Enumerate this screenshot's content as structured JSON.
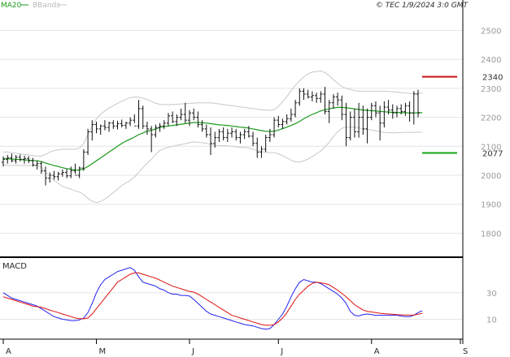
{
  "header": {
    "legend_ma": "MA20",
    "legend_bb": "BBands",
    "copyright": "© TEC 1/9/2024 3:0 GMT"
  },
  "colors": {
    "price": "#111111",
    "ma": "#1a9a1a",
    "bbands": "#c8c8c8",
    "macd": "#2222ee",
    "signal": "#dd1111",
    "resistance": "#cc1111",
    "support": "#11aa11",
    "grid": "#e4e4e4"
  },
  "chart_data": [
    {
      "type": "ohlc",
      "y_ticks": [
        1800,
        1900,
        2000,
        2100,
        2200,
        2300,
        2400,
        2500
      ],
      "ylim": [
        1720,
        2560
      ],
      "x_tick_labels": [
        "A",
        "M",
        "J",
        "J",
        "A",
        "S"
      ],
      "x_tick_index": [
        0,
        22,
        44,
        65,
        87,
        108
      ],
      "levels": [
        {
          "name": "resistance",
          "value": 2340,
          "label": "2340"
        },
        {
          "name": "support",
          "value": 2077,
          "label": "2077"
        }
      ],
      "series": [
        {
          "name": "MA20",
          "type": "line"
        },
        {
          "name": "BBands",
          "type": "band"
        }
      ],
      "bars": [
        [
          2045,
          2065,
          2030,
          2055
        ],
        [
          2055,
          2070,
          2040,
          2060
        ],
        [
          2060,
          2075,
          2045,
          2050
        ],
        [
          2050,
          2070,
          2040,
          2062
        ],
        [
          2062,
          2072,
          2048,
          2055
        ],
        [
          2055,
          2068,
          2040,
          2058
        ],
        [
          2058,
          2066,
          2042,
          2050
        ],
        [
          2050,
          2060,
          2030,
          2035
        ],
        [
          2035,
          2050,
          2020,
          2040
        ],
        [
          2040,
          2048,
          2005,
          2015
        ],
        [
          2015,
          2030,
          1965,
          1990
        ],
        [
          1990,
          2010,
          1975,
          2000
        ],
        [
          2000,
          2015,
          1985,
          1995
        ],
        [
          1995,
          2012,
          1982,
          2005
        ],
        [
          2005,
          2020,
          1995,
          2010
        ],
        [
          2010,
          2022,
          1990,
          1998
        ],
        [
          1998,
          2030,
          1990,
          2015
        ],
        [
          2015,
          2040,
          2005,
          2000
        ],
        [
          2000,
          2030,
          1990,
          2025
        ],
        [
          2025,
          2090,
          2015,
          2080
        ],
        [
          2080,
          2160,
          2070,
          2150
        ],
        [
          2150,
          2190,
          2120,
          2175
        ],
        [
          2175,
          2185,
          2145,
          2160
        ],
        [
          2160,
          2175,
          2140,
          2170
        ],
        [
          2170,
          2190,
          2155,
          2165
        ],
        [
          2165,
          2185,
          2150,
          2180
        ],
        [
          2180,
          2190,
          2160,
          2170
        ],
        [
          2170,
          2188,
          2158,
          2178
        ],
        [
          2178,
          2192,
          2165,
          2172
        ],
        [
          2172,
          2185,
          2160,
          2180
        ],
        [
          2180,
          2200,
          2170,
          2190
        ],
        [
          2190,
          2210,
          2180,
          2170
        ],
        [
          2170,
          2260,
          2160,
          2230
        ],
        [
          2230,
          2240,
          2160,
          2170
        ],
        [
          2170,
          2185,
          2140,
          2160
        ],
        [
          2160,
          2170,
          2080,
          2140
        ],
        [
          2140,
          2175,
          2130,
          2165
        ],
        [
          2165,
          2180,
          2150,
          2170
        ],
        [
          2170,
          2190,
          2160,
          2180
        ],
        [
          2180,
          2215,
          2170,
          2205
        ],
        [
          2205,
          2220,
          2180,
          2185
        ],
        [
          2185,
          2210,
          2170,
          2200
        ],
        [
          2200,
          2230,
          2190,
          2210
        ],
        [
          2210,
          2250,
          2180,
          2190
        ],
        [
          2190,
          2225,
          2170,
          2215
        ],
        [
          2215,
          2230,
          2190,
          2200
        ],
        [
          2200,
          2220,
          2165,
          2175
        ],
        [
          2175,
          2190,
          2150,
          2160
        ],
        [
          2160,
          2175,
          2130,
          2140
        ],
        [
          2140,
          2165,
          2070,
          2110
        ],
        [
          2110,
          2150,
          2095,
          2130
        ],
        [
          2130,
          2160,
          2115,
          2150
        ],
        [
          2150,
          2165,
          2120,
          2130
        ],
        [
          2130,
          2160,
          2115,
          2145
        ],
        [
          2145,
          2165,
          2130,
          2150
        ],
        [
          2150,
          2160,
          2120,
          2130
        ],
        [
          2130,
          2150,
          2110,
          2140
        ],
        [
          2140,
          2160,
          2125,
          2150
        ],
        [
          2150,
          2170,
          2130,
          2135
        ],
        [
          2135,
          2150,
          2100,
          2110
        ],
        [
          2110,
          2130,
          2060,
          2080
        ],
        [
          2080,
          2100,
          2060,
          2090
        ],
        [
          2090,
          2140,
          2080,
          2130
        ],
        [
          2130,
          2160,
          2115,
          2140
        ],
        [
          2140,
          2200,
          2130,
          2190
        ],
        [
          2190,
          2205,
          2165,
          2175
        ],
        [
          2175,
          2195,
          2160,
          2185
        ],
        [
          2185,
          2210,
          2175,
          2195
        ],
        [
          2195,
          2230,
          2185,
          2210
        ],
        [
          2210,
          2260,
          2200,
          2250
        ],
        [
          2250,
          2300,
          2240,
          2290
        ],
        [
          2290,
          2300,
          2260,
          2280
        ],
        [
          2280,
          2295,
          2265,
          2270
        ],
        [
          2270,
          2290,
          2255,
          2275
        ],
        [
          2275,
          2285,
          2250,
          2265
        ],
        [
          2265,
          2290,
          2250,
          2280
        ],
        [
          2280,
          2305,
          2210,
          2220
        ],
        [
          2220,
          2260,
          2180,
          2250
        ],
        [
          2250,
          2280,
          2230,
          2270
        ],
        [
          2270,
          2285,
          2240,
          2260
        ],
        [
          2260,
          2275,
          2190,
          2210
        ],
        [
          2210,
          2250,
          2100,
          2130
        ],
        [
          2130,
          2220,
          2120,
          2200
        ],
        [
          2200,
          2230,
          2130,
          2150
        ],
        [
          2150,
          2250,
          2130,
          2200
        ],
        [
          2200,
          2240,
          2140,
          2160
        ],
        [
          2160,
          2230,
          2110,
          2200
        ],
        [
          2200,
          2250,
          2190,
          2240
        ],
        [
          2240,
          2255,
          2200,
          2215
        ],
        [
          2215,
          2240,
          2120,
          2180
        ],
        [
          2180,
          2255,
          2165,
          2235
        ],
        [
          2235,
          2260,
          2210,
          2225
        ],
        [
          2225,
          2245,
          2195,
          2215
        ],
        [
          2215,
          2240,
          2200,
          2230
        ],
        [
          2230,
          2245,
          2210,
          2220
        ],
        [
          2220,
          2250,
          2205,
          2240
        ],
        [
          2240,
          2255,
          2185,
          2215
        ],
        [
          2215,
          2290,
          2175,
          2280
        ],
        [
          2280,
          2295,
          2200,
          2215
        ]
      ],
      "ma20": [
        2058,
        2057,
        2056,
        2055,
        2054,
        2053,
        2052,
        2051,
        2050,
        2047,
        2042,
        2038,
        2034,
        2030,
        2026,
        2023,
        2021,
        2018,
        2018,
        2022,
        2030,
        2040,
        2050,
        2060,
        2070,
        2080,
        2090,
        2100,
        2110,
        2118,
        2125,
        2132,
        2140,
        2146,
        2152,
        2155,
        2160,
        2165,
        2168,
        2170,
        2172,
        2174,
        2176,
        2178,
        2180,
        2182,
        2182,
        2181,
        2180,
        2178,
        2176,
        2174,
        2173,
        2172,
        2170,
        2168,
        2166,
        2165,
        2163,
        2160,
        2157,
        2154,
        2152,
        2151,
        2152,
        2156,
        2161,
        2166,
        2172,
        2178,
        2186,
        2195,
        2203,
        2210,
        2216,
        2222,
        2226,
        2229,
        2232,
        2234,
        2234,
        2233,
        2231,
        2229,
        2227,
        2225,
        2224,
        2223,
        2222,
        2220,
        2219,
        2218,
        2217,
        2217,
        2216,
        2216,
        2215,
        2215,
        2216,
        2216
      ],
      "bb_upper": [
        2080,
        2080,
        2078,
        2076,
        2074,
        2072,
        2070,
        2068,
        2066,
        2066,
        2072,
        2080,
        2085,
        2088,
        2090,
        2090,
        2090,
        2090,
        2094,
        2110,
        2140,
        2170,
        2195,
        2210,
        2222,
        2232,
        2240,
        2248,
        2255,
        2262,
        2268,
        2270,
        2270,
        2266,
        2262,
        2255,
        2248,
        2245,
        2244,
        2244,
        2244,
        2245,
        2246,
        2247,
        2248,
        2249,
        2250,
        2250,
        2250,
        2250,
        2248,
        2246,
        2244,
        2242,
        2240,
        2238,
        2236,
        2234,
        2232,
        2230,
        2228,
        2226,
        2225,
        2224,
        2226,
        2238,
        2254,
        2272,
        2292,
        2310,
        2326,
        2340,
        2350,
        2356,
        2358,
        2360,
        2354,
        2344,
        2330,
        2318,
        2306,
        2300,
        2296,
        2292,
        2290,
        2290,
        2290,
        2290,
        2290,
        2290,
        2290,
        2289,
        2288,
        2287,
        2285,
        2284,
        2282,
        2282,
        2283,
        2284
      ],
      "bb_lower": [
        2036,
        2034,
        2034,
        2034,
        2034,
        2034,
        2034,
        2034,
        2034,
        2028,
        2012,
        1996,
        1983,
        1972,
        1962,
        1956,
        1952,
        1946,
        1942,
        1934,
        1920,
        1910,
        1905,
        1910,
        1918,
        1928,
        1940,
        1952,
        1965,
        1974,
        1982,
        1994,
        2010,
        2026,
        2042,
        2055,
        2072,
        2085,
        2092,
        2096,
        2100,
        2103,
        2106,
        2109,
        2112,
        2115,
        2114,
        2112,
        2110,
        2106,
        2104,
        2102,
        2102,
        2102,
        2100,
        2098,
        2096,
        2096,
        2094,
        2090,
        2086,
        2082,
        2079,
        2078,
        2078,
        2074,
        2068,
        2060,
        2052,
        2046,
        2046,
        2050,
        2056,
        2064,
        2074,
        2084,
        2098,
        2114,
        2134,
        2150,
        2162,
        2166,
        2166,
        2166,
        2164,
        2160,
        2158,
        2156,
        2154,
        2150,
        2148,
        2147,
        2146,
        2147,
        2147,
        2148,
        2148,
        2148,
        2149,
        2148
      ]
    },
    {
      "type": "line",
      "title": "MACD",
      "y_ticks": [
        10,
        30
      ],
      "ylim": [
        -5,
        55
      ],
      "series": [
        {
          "name": "MACD",
          "values": [
            30,
            28,
            26,
            25,
            24,
            23,
            22,
            21,
            20,
            18,
            16,
            14,
            12,
            11,
            10,
            9.5,
            9,
            9,
            9.5,
            11,
            15,
            22,
            30,
            36,
            40,
            42,
            44,
            46,
            47,
            48,
            49,
            47,
            42,
            38,
            37,
            36,
            35,
            33,
            32,
            30,
            29,
            29,
            28,
            28,
            27.5,
            25,
            22,
            19,
            16,
            14,
            13,
            12,
            11,
            10,
            9,
            8,
            7,
            6,
            5.5,
            5,
            4,
            3,
            2.5,
            3,
            6,
            10,
            14,
            20,
            27,
            33,
            38,
            40,
            39,
            38,
            38,
            37,
            35,
            33,
            31,
            29,
            26,
            22,
            16,
            13,
            12.5,
            13.5,
            14,
            13.5,
            13,
            13,
            13,
            13,
            13,
            13,
            12.5,
            12,
            12,
            13,
            15,
            16.5
          ]
        },
        {
          "name": "Signal",
          "values": [
            27,
            26,
            25,
            24,
            23,
            22,
            21,
            20,
            19.5,
            19,
            18,
            17,
            16,
            15,
            14,
            13,
            12,
            11,
            10.5,
            10.5,
            11,
            14,
            18,
            22,
            26,
            30,
            34,
            38,
            40,
            42,
            44,
            45,
            45,
            44,
            43,
            42,
            41,
            39.5,
            38,
            36.5,
            35,
            34,
            33,
            32,
            31,
            30.5,
            29,
            27,
            25,
            23,
            21,
            19,
            17,
            15,
            13,
            12,
            11,
            10,
            9,
            8,
            7,
            6,
            5.5,
            5.5,
            6,
            8,
            11,
            15,
            20,
            25,
            29,
            32,
            35,
            37,
            38,
            37.5,
            37,
            36,
            34,
            32,
            29.5,
            27,
            24,
            21,
            19,
            17,
            16,
            15.5,
            15,
            14.5,
            14.2,
            14,
            13.8,
            13.5,
            13.3,
            13.2,
            13.1,
            13.2,
            13.8,
            14.5
          ]
        }
      ]
    }
  ]
}
